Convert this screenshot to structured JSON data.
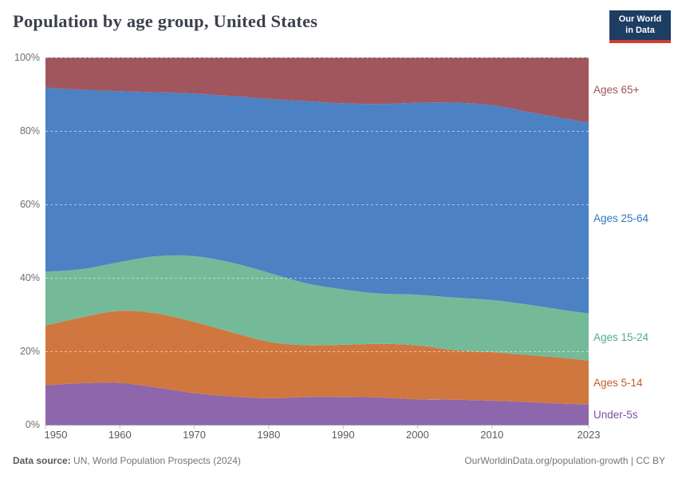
{
  "header": {
    "title": "Population by age group, United States",
    "logo": {
      "line1": "Our World",
      "line2": "in Data",
      "bg_color": "#1d3d63",
      "accent_color": "#cd3d32"
    }
  },
  "chart_data": {
    "type": "area",
    "stacked_percent": true,
    "title": "Population by age group, United States",
    "xlabel": "",
    "ylabel": "",
    "xlim": [
      1950,
      2023
    ],
    "ylim": [
      0,
      100
    ],
    "grid": "dashed-horizontal",
    "legend_position": "right-edge-labels",
    "x": [
      1950,
      1955,
      1960,
      1965,
      1970,
      1975,
      1980,
      1985,
      1990,
      1995,
      2000,
      2005,
      2010,
      2015,
      2020,
      2023
    ],
    "series": [
      {
        "name": "Under-5s",
        "color": "#8d66ac",
        "label_color": "#7b4fa7",
        "values": [
          10.75,
          11.3,
          11.35,
          10.1,
          8.6,
          7.7,
          7.2,
          7.55,
          7.55,
          7.4,
          6.9,
          6.8,
          6.55,
          6.15,
          5.7,
          5.55
        ]
      },
      {
        "name": "Ages 5-14",
        "color": "#d0773f",
        "label_color": "#c35d27",
        "values": [
          16.25,
          18.0,
          19.65,
          20.2,
          19.4,
          17.5,
          15.4,
          14.1,
          14.2,
          14.6,
          14.7,
          13.5,
          13.2,
          12.8,
          12.4,
          11.9
        ]
      },
      {
        "name": "Ages 15-24",
        "color": "#74ba99",
        "label_color": "#4fae87",
        "values": [
          14.65,
          13.1,
          13.3,
          15.6,
          17.9,
          18.95,
          18.8,
          16.9,
          15.1,
          13.7,
          13.8,
          14.3,
          14.2,
          13.7,
          13.0,
          12.85
        ]
      },
      {
        "name": "Ages 25-64",
        "color": "#4c81c3",
        "label_color": "#3175c1",
        "values": [
          50.15,
          48.8,
          46.5,
          44.65,
          44.25,
          45.35,
          47.3,
          49.55,
          50.7,
          51.6,
          52.3,
          53.1,
          53.05,
          52.45,
          52.2,
          52.0
        ]
      },
      {
        "name": "Ages 65+",
        "color": "#a1565e",
        "label_color": "#9e525b",
        "values": [
          8.2,
          8.8,
          9.2,
          9.45,
          9.85,
          10.5,
          11.3,
          11.9,
          12.45,
          12.7,
          12.3,
          12.3,
          13.0,
          14.9,
          16.7,
          17.7
        ]
      }
    ],
    "y_ticks": [
      0,
      20,
      40,
      60,
      80,
      100
    ],
    "y_tick_labels": [
      "0%",
      "20%",
      "40%",
      "60%",
      "80%",
      "100%"
    ],
    "x_ticks": [
      1950,
      1960,
      1970,
      1980,
      1990,
      2000,
      2010,
      2023
    ],
    "x_tick_labels": [
      "1950",
      "1960",
      "1970",
      "1980",
      "1990",
      "2000",
      "2010",
      "2023"
    ]
  },
  "footer": {
    "source_label": "Data source:",
    "source_value": " UN, World Population Prospects (2024)",
    "credit": "OurWorldinData.org/population-growth | CC BY"
  }
}
